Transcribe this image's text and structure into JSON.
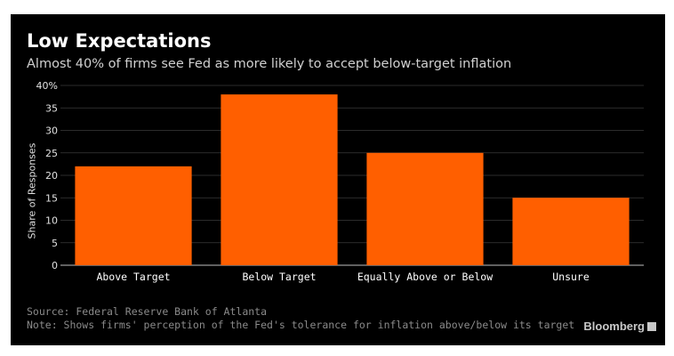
{
  "header": {
    "title": "Low Expectations",
    "subtitle": "Almost 40% of firms see Fed as more likely to accept below-target inflation"
  },
  "chart_data": {
    "type": "bar",
    "categories": [
      "Above Target",
      "Below Target",
      "Equally Above or Below",
      "Unsure"
    ],
    "values": [
      22,
      38,
      25,
      15
    ],
    "ylabel": "Share of Responses",
    "ylim": [
      0,
      40
    ],
    "yticks": [
      "0",
      "5",
      "10",
      "15",
      "20",
      "25",
      "30",
      "35",
      "40%"
    ],
    "bar_color": "#ff5f00",
    "grid": true
  },
  "footer": {
    "source": "Source: Federal Reserve Bank of Atlanta",
    "note": "Note: Shows firms' perception of the Fed's tolerance for inflation above/below its target",
    "brand": "Bloomberg"
  },
  "colors": {
    "background": "#000000",
    "bar": "#ff5f00",
    "gridline": "#3a3a3a",
    "text": "#ffffff"
  }
}
